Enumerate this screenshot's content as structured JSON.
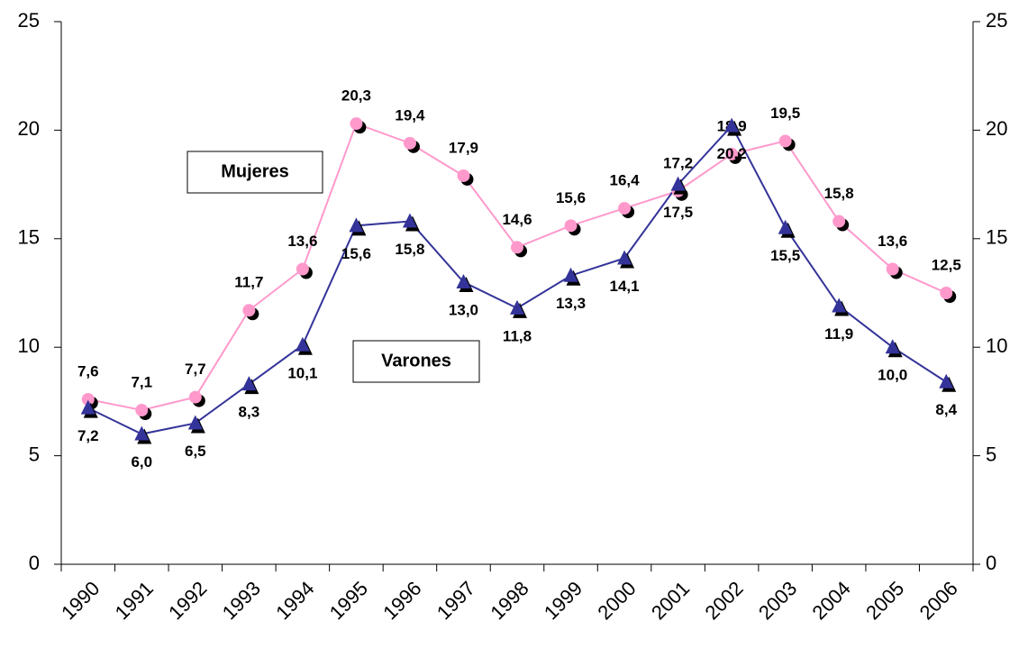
{
  "chart_data": {
    "type": "line",
    "categories": [
      "1990",
      "1991",
      "1992",
      "1993",
      "1994",
      "1995",
      "1996",
      "1997",
      "1998",
      "1999",
      "2000",
      "2001",
      "2002",
      "2003",
      "2004",
      "2005",
      "2006"
    ],
    "series": [
      {
        "name": "Mujeres",
        "color": "#ff99cc",
        "marker": "circle",
        "values": [
          7.6,
          7.1,
          7.7,
          11.7,
          13.6,
          20.3,
          19.4,
          17.9,
          14.6,
          15.6,
          16.4,
          17.2,
          18.9,
          19.5,
          15.8,
          13.6,
          12.5
        ],
        "value_labels": [
          "7,6",
          "7,1",
          "7,7",
          "11,7",
          "13,6",
          "20,3",
          "19,4",
          "17,9",
          "14,6",
          "15,6",
          "16,4",
          "17,2",
          "18,9",
          "19,5",
          "15,8",
          "13,6",
          "12,5"
        ]
      },
      {
        "name": "Varones",
        "color": "#333399",
        "marker": "triangle",
        "values": [
          7.2,
          6.0,
          6.5,
          8.3,
          10.1,
          15.6,
          15.8,
          13.0,
          11.8,
          13.3,
          14.1,
          17.5,
          20.2,
          15.5,
          11.9,
          10.0,
          8.4
        ],
        "value_labels": [
          "7,2",
          "6,0",
          "6,5",
          "8,3",
          "10,1",
          "15,6",
          "15,8",
          "13,0",
          "11,8",
          "13,3",
          "14,1",
          "17,5",
          "20,2",
          "15,5",
          "11,9",
          "10,0",
          "8,4"
        ]
      }
    ],
    "ylim": [
      0,
      25
    ],
    "yticks": [
      0,
      5,
      10,
      15,
      20,
      25
    ],
    "y2lim": [
      0,
      25
    ],
    "y2ticks": [
      0,
      5,
      10,
      15,
      20,
      25
    ]
  }
}
